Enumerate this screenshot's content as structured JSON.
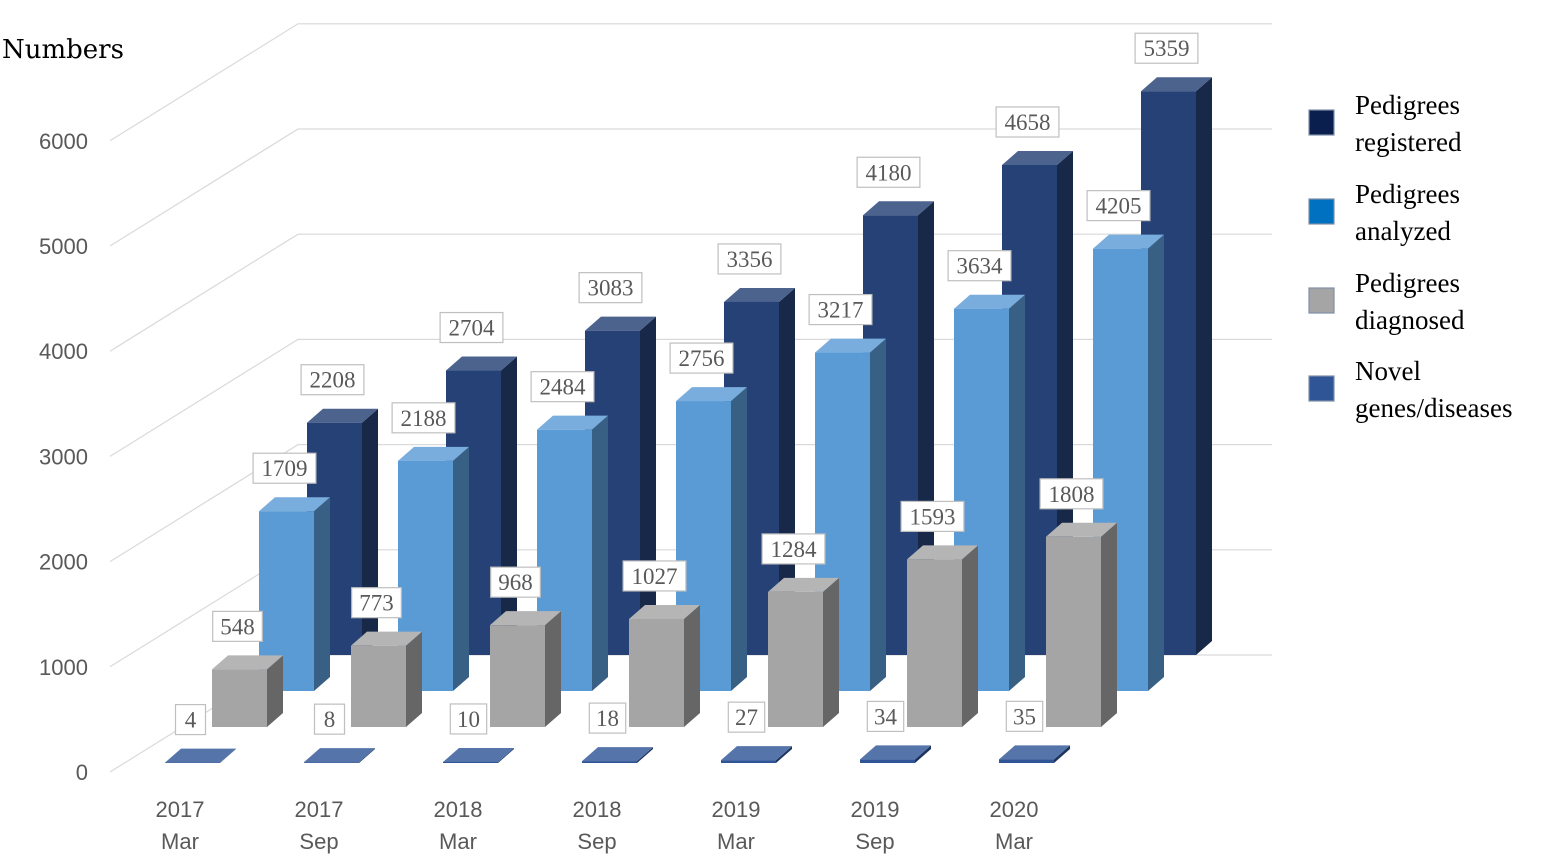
{
  "chart_data": {
    "type": "bar",
    "style": "3d-clustered-depth",
    "ylabel": "Numbers",
    "xlabel": "",
    "title": "",
    "ylim": [
      0,
      6000
    ],
    "yticks": [
      0,
      1000,
      2000,
      3000,
      4000,
      5000,
      6000
    ],
    "grid": true,
    "legend_position": "right",
    "categories": [
      [
        "2017",
        "Mar"
      ],
      [
        "2017",
        "Sep"
      ],
      [
        "2018",
        "Mar"
      ],
      [
        "2018",
        "Sep"
      ],
      [
        "2019",
        "Mar"
      ],
      [
        "2019",
        "Sep"
      ],
      [
        "2020",
        "Mar"
      ]
    ],
    "series": [
      {
        "name": [
          "Pedigrees",
          "registered"
        ],
        "color": "#254175",
        "values": [
          2208,
          2704,
          3083,
          3356,
          4180,
          4658,
          5359
        ]
      },
      {
        "name": [
          "Pedigrees",
          "analyzed"
        ],
        "color": "#5b9bd5",
        "values": [
          1709,
          2188,
          2484,
          2756,
          3217,
          3634,
          4205
        ]
      },
      {
        "name": [
          "Pedigrees",
          "diagnosed"
        ],
        "color": "#a5a5a5",
        "values": [
          548,
          773,
          968,
          1027,
          1284,
          1593,
          1808
        ]
      },
      {
        "name": [
          "Novel",
          "genes/diseases"
        ],
        "color": "#2f5597",
        "values": [
          4,
          8,
          10,
          18,
          27,
          34,
          35
        ]
      }
    ],
    "legend_swatch_colors": [
      "#0b1f4e",
      "#0070c0",
      "#a5a5a5",
      "#2f5597"
    ]
  }
}
